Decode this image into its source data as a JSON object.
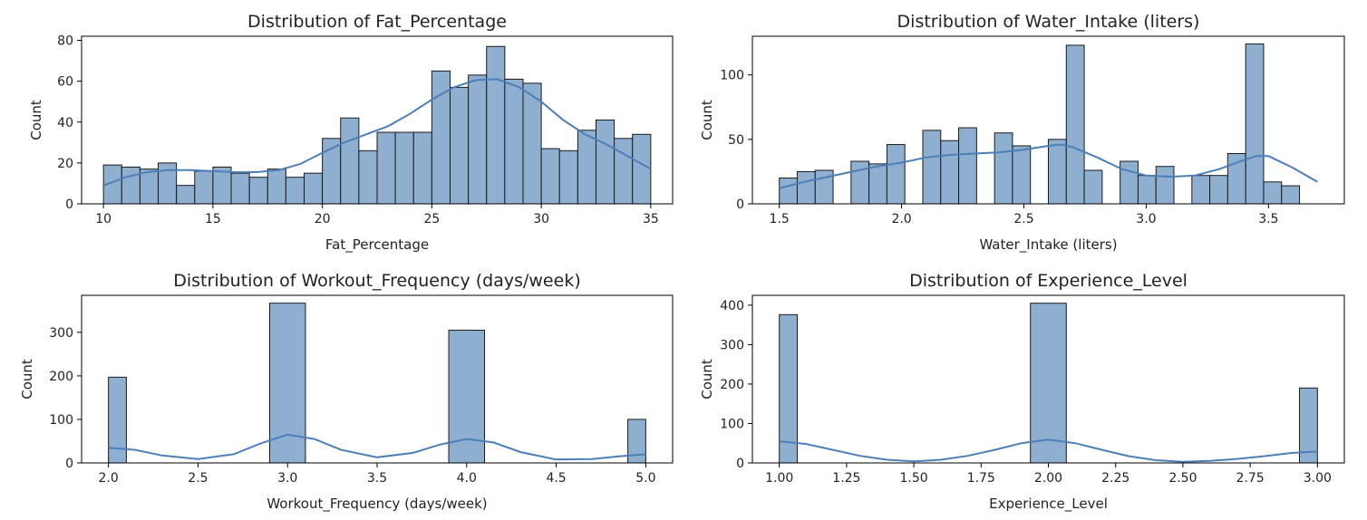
{
  "chart_data": [
    {
      "type": "histogram",
      "title": "Distribution of Fat_Percentage",
      "xlabel": "Fat_Percentage",
      "ylabel": "Count",
      "xlim": [
        9.0,
        36.0
      ],
      "ylim": [
        0,
        82
      ],
      "xticks": [
        10,
        15,
        20,
        25,
        30,
        35
      ],
      "xtick_labels": [
        "10",
        "15",
        "20",
        "25",
        "30",
        "35"
      ],
      "yticks": [
        0,
        20,
        40,
        60,
        80
      ],
      "ytick_labels": [
        "0",
        "20",
        "40",
        "60",
        "80"
      ],
      "bin_edges": [
        10.0,
        10.833,
        11.667,
        12.5,
        13.333,
        14.167,
        15.0,
        15.833,
        16.667,
        17.5,
        18.333,
        19.167,
        20.0,
        20.833,
        21.667,
        22.5,
        23.333,
        24.167,
        25.0,
        25.833,
        26.667,
        27.5,
        28.333,
        29.167,
        30.0,
        30.833,
        31.667,
        32.5,
        33.333,
        34.167,
        35.0
      ],
      "counts": [
        19,
        18,
        17,
        20,
        9,
        16,
        18,
        15,
        13,
        17,
        13,
        15,
        32,
        42,
        26,
        35,
        35,
        35,
        65,
        57,
        63,
        77,
        61,
        59,
        27,
        26,
        36,
        41,
        32,
        34
      ],
      "kde": {
        "x": [
          10,
          11,
          12,
          13,
          14,
          15,
          16,
          17,
          18,
          19,
          20,
          21,
          22,
          23,
          24,
          25,
          26,
          27,
          28,
          29,
          30,
          31,
          32,
          33,
          34,
          35
        ],
        "y": [
          9,
          13,
          15.5,
          16.5,
          16.5,
          16,
          15.5,
          15.5,
          16.5,
          19.5,
          25,
          30,
          34,
          38,
          44,
          51,
          57,
          60.5,
          61,
          57,
          50,
          41,
          34,
          29,
          23,
          17
        ]
      },
      "bar_color": "#8fafd1",
      "line_color": "#4c7fb8"
    },
    {
      "type": "histogram",
      "title": "Distribution of Water_Intake (liters)",
      "xlabel": "Water_Intake (liters)",
      "ylabel": "Count",
      "xlim": [
        1.39,
        3.81
      ],
      "ylim": [
        0,
        130
      ],
      "xticks": [
        1.5,
        2.0,
        2.5,
        3.0,
        3.5
      ],
      "xtick_labels": [
        "1.5",
        "2.0",
        "2.5",
        "3.0",
        "3.5"
      ],
      "yticks": [
        0,
        50,
        100
      ],
      "ytick_labels": [
        "0",
        "50",
        "100"
      ],
      "bin_edges": [
        1.5,
        1.5733,
        1.6467,
        1.72,
        1.7933,
        1.8667,
        1.94,
        2.0133,
        2.0867,
        2.16,
        2.2333,
        2.3067,
        2.38,
        2.4533,
        2.5267,
        2.6,
        2.6733,
        2.7467,
        2.82,
        2.8933,
        2.9667,
        3.04,
        3.1133,
        3.1867,
        3.26,
        3.3333,
        3.4067,
        3.48,
        3.5533,
        3.6267,
        3.7
      ],
      "counts": [
        20,
        25,
        26,
        0,
        33,
        31,
        46,
        0,
        57,
        49,
        59,
        0,
        55,
        45,
        0,
        50,
        123,
        26,
        0,
        33,
        22,
        29,
        0,
        22,
        22,
        39,
        124,
        17,
        14,
        0
      ],
      "kde": {
        "x": [
          1.5,
          1.6,
          1.7,
          1.8,
          1.9,
          2.0,
          2.1,
          2.2,
          2.3,
          2.4,
          2.5,
          2.6,
          2.65,
          2.7,
          2.8,
          2.9,
          3.0,
          3.1,
          3.2,
          3.3,
          3.4,
          3.45,
          3.5,
          3.6,
          3.7
        ],
        "y": [
          12,
          17,
          21,
          25,
          29,
          32,
          36,
          38,
          39,
          40,
          42,
          45,
          46,
          44,
          36,
          27,
          22,
          21,
          22,
          27,
          34,
          37,
          37,
          28,
          17
        ]
      },
      "bar_color": "#8fafd1",
      "line_color": "#4c7fb8"
    },
    {
      "type": "histogram",
      "title": "Distribution of Workout_Frequency (days/week)",
      "xlabel": "Workout_Frequency (days/week)",
      "ylabel": "Count",
      "xlim": [
        1.85,
        5.15
      ],
      "ylim": [
        0,
        385
      ],
      "xticks": [
        2.0,
        2.5,
        3.0,
        3.5,
        4.0,
        4.5,
        5.0
      ],
      "xtick_labels": [
        "2.0",
        "2.5",
        "3.0",
        "3.5",
        "4.0",
        "4.5",
        "5.0"
      ],
      "yticks": [
        0,
        100,
        200,
        300
      ],
      "ytick_labels": [
        "0",
        "100",
        "200",
        "300"
      ],
      "bin_edges": [
        2.0,
        2.1,
        2.9,
        3.1,
        3.9,
        4.1,
        4.9,
        5.0
      ],
      "counts": [
        197,
        0,
        367,
        0,
        305,
        0,
        100
      ],
      "kde": {
        "x": [
          2.0,
          2.15,
          2.3,
          2.5,
          2.7,
          2.85,
          3.0,
          3.15,
          3.3,
          3.5,
          3.7,
          3.85,
          4.0,
          4.15,
          4.3,
          4.5,
          4.7,
          4.85,
          5.0
        ],
        "y": [
          35,
          30,
          17,
          9,
          20,
          45,
          65,
          55,
          30,
          13,
          23,
          42,
          55,
          47,
          25,
          8,
          9,
          15,
          20
        ]
      },
      "bar_color": "#8fafd1",
      "line_color": "#4c7fb8"
    },
    {
      "type": "histogram",
      "title": "Distribution of Experience_Level",
      "xlabel": "Experience_Level",
      "ylabel": "Count",
      "xlim": [
        0.9,
        3.1
      ],
      "ylim": [
        0,
        425
      ],
      "xticks": [
        1.0,
        1.25,
        1.5,
        1.75,
        2.0,
        2.25,
        2.5,
        2.75,
        3.0
      ],
      "xtick_labels": [
        "1.00",
        "1.25",
        "1.50",
        "1.75",
        "2.00",
        "2.25",
        "2.50",
        "2.75",
        "3.00"
      ],
      "yticks": [
        0,
        100,
        200,
        300,
        400
      ],
      "ytick_labels": [
        "0",
        "100",
        "200",
        "300",
        "400"
      ],
      "bin_edges": [
        1.0,
        1.0667,
        1.9333,
        2.0667,
        2.9333,
        3.0
      ],
      "counts": [
        376,
        0,
        405,
        0,
        190
      ],
      "kde": {
        "x": [
          1.0,
          1.1,
          1.2,
          1.3,
          1.4,
          1.5,
          1.6,
          1.7,
          1.8,
          1.9,
          2.0,
          2.1,
          2.2,
          2.3,
          2.4,
          2.5,
          2.6,
          2.7,
          2.8,
          2.9,
          3.0
        ],
        "y": [
          55,
          48,
          33,
          18,
          8,
          4,
          8,
          18,
          33,
          50,
          59,
          50,
          33,
          17,
          7,
          3,
          5,
          10,
          17,
          25,
          29
        ]
      },
      "bar_color": "#8fafd1",
      "line_color": "#4c7fb8"
    }
  ]
}
